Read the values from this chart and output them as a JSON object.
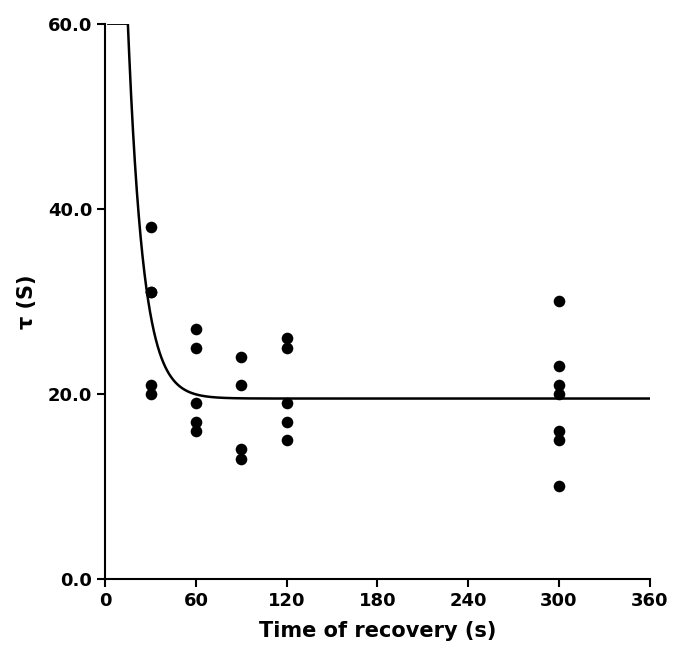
{
  "scatter_x": [
    30,
    30,
    30,
    30,
    30,
    60,
    60,
    60,
    60,
    60,
    90,
    90,
    90,
    90,
    120,
    120,
    120,
    120,
    120,
    300,
    300,
    300,
    300,
    300,
    300,
    300
  ],
  "scatter_y": [
    38,
    31,
    31,
    21,
    20,
    27,
    25,
    19,
    17,
    16,
    24,
    21,
    14,
    13,
    26,
    25,
    19,
    17,
    15,
    30,
    23,
    21,
    20,
    16,
    15,
    10
  ],
  "curve_params": {
    "asymptote": 19.5,
    "amplitude": 180,
    "decay": 0.1
  },
  "xlabel": "Time of recovery (s)",
  "ylabel": "τ (S)",
  "xlim": [
    0,
    360
  ],
  "ylim": [
    0,
    60
  ],
  "xticks": [
    0,
    60,
    120,
    180,
    240,
    300,
    360
  ],
  "yticks": [
    0.0,
    20.0,
    40.0,
    60.0
  ],
  "marker_color": "#000000",
  "marker_size": 70,
  "line_color": "#000000",
  "line_width": 1.8,
  "background_color": "#ffffff",
  "xlabel_fontsize": 15,
  "ylabel_fontsize": 15,
  "tick_fontsize": 13,
  "font_family": "Arial"
}
